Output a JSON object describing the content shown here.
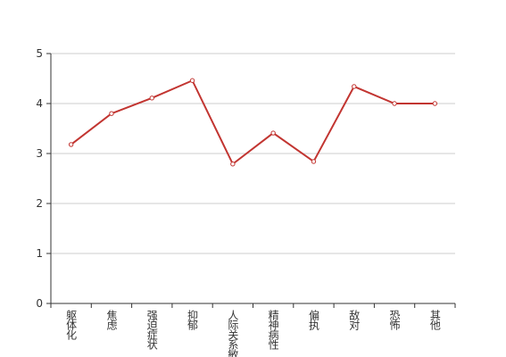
{
  "chart_data": {
    "type": "line",
    "categories": [
      "躯体化",
      "焦虑",
      "强迫症状",
      "抑郁",
      "人际关系敏感",
      "精神病性",
      "偏执",
      "敌对",
      "恐怖",
      "其他"
    ],
    "values": [
      3.18,
      3.8,
      4.11,
      4.46,
      2.79,
      3.41,
      2.84,
      4.34,
      4.0,
      4.0
    ],
    "color": "#c23531",
    "ylim": [
      0,
      5
    ],
    "yticks": [
      0,
      1,
      2,
      3,
      4,
      5
    ],
    "grid": true
  }
}
